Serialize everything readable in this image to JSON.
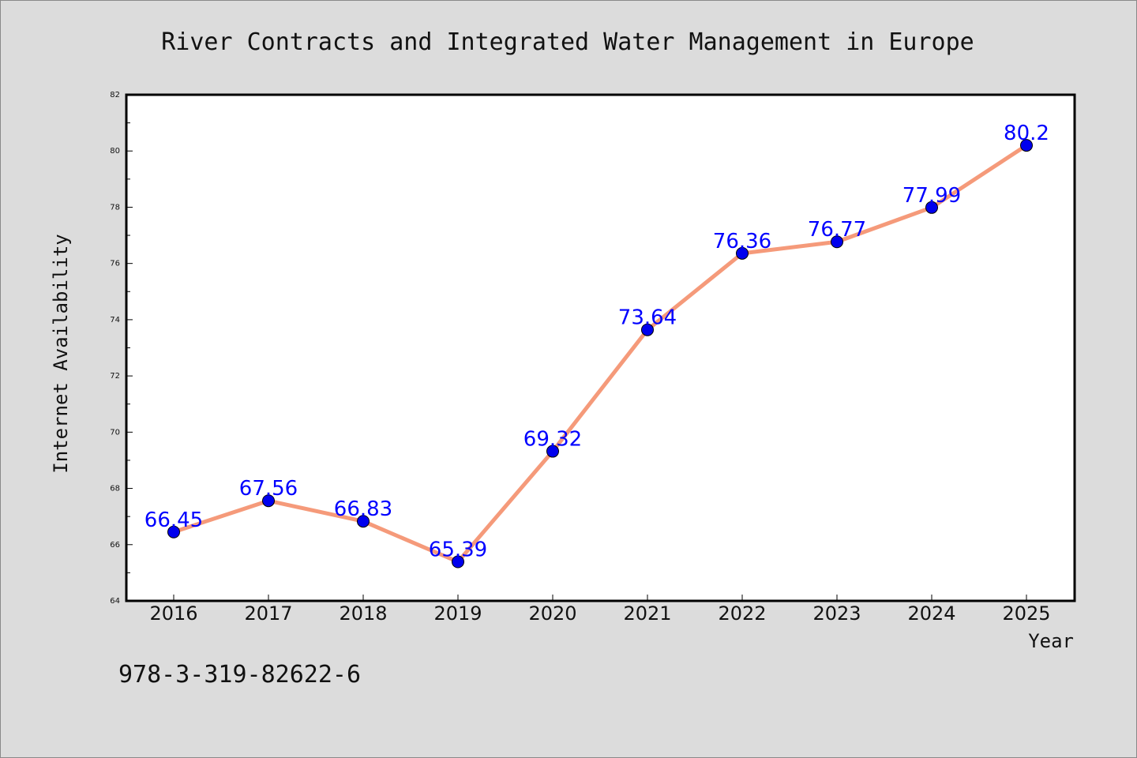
{
  "colors": {
    "background": "#dcdcdc",
    "plot_background": "#ffffff",
    "line": "#f59a7a",
    "marker": "#0000ee",
    "data_label": "#0000ff"
  },
  "footer": {
    "text": "978-3-319-82622-6"
  },
  "chart_data": {
    "type": "line",
    "title": "River Contracts and Integrated Water Management in Europe",
    "xlabel": "Year",
    "ylabel": "Internet Availability",
    "categories": [
      "2016",
      "2017",
      "2018",
      "2019",
      "2020",
      "2021",
      "2022",
      "2023",
      "2024",
      "2025"
    ],
    "values": [
      66.45,
      67.56,
      66.83,
      65.39,
      69.32,
      73.64,
      76.36,
      76.77,
      77.99,
      80.2
    ],
    "data_labels": [
      "66.45",
      "67.56",
      "66.83",
      "65.39",
      "69.32",
      "73.64",
      "76.36",
      "76.77",
      "77.99",
      "80.2"
    ],
    "ylim": [
      64,
      82
    ],
    "yticks": [
      64,
      66,
      68,
      70,
      72,
      74,
      76,
      78,
      80,
      82
    ],
    "grid": false,
    "legend": "none"
  }
}
